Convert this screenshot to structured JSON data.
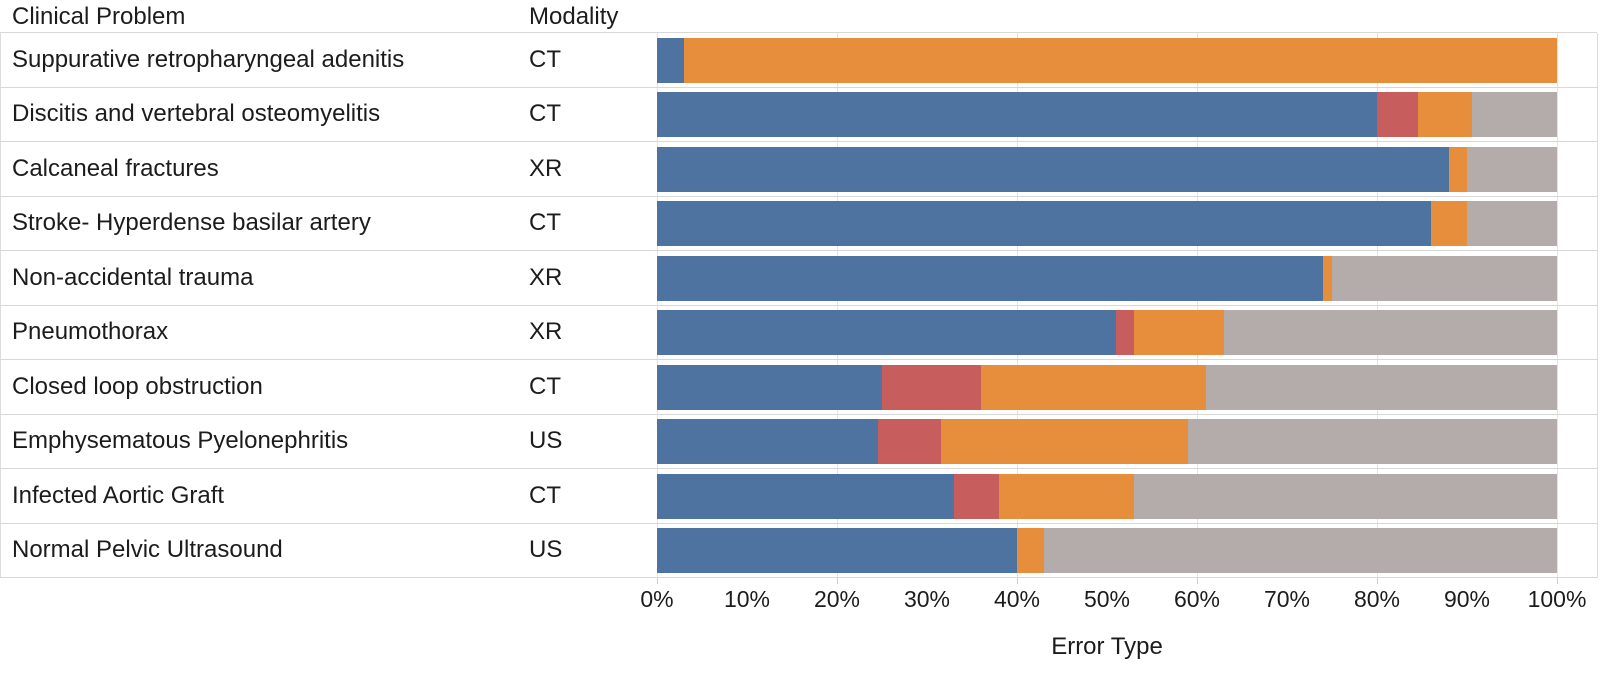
{
  "header": {
    "clinical_problem_label": "Clinical Problem",
    "modality_label": "Modality"
  },
  "x_axis": {
    "title": "Error Type",
    "tick_labels": [
      "0%",
      "10%",
      "20%",
      "30%",
      "40%",
      "50%",
      "60%",
      "70%",
      "80%",
      "90%",
      "100%"
    ]
  },
  "colors": {
    "segment_blue": "#4e73a0",
    "segment_red": "#c75d5d",
    "segment_orange": "#e78e3d",
    "segment_gray": "#b3acaa",
    "row_separator": "#d7d7d7",
    "gridline": "#e4e4e4",
    "text": "#1c1c1c"
  },
  "chart_data": {
    "type": "bar",
    "orientation": "horizontal",
    "stacked": true,
    "stack_unit": "percent",
    "xlabel": "Error Type",
    "xlim": [
      0,
      100
    ],
    "x_tick_step": 10,
    "gridline_step": 20,
    "grid": true,
    "legend_visible": false,
    "column_headers": [
      "Clinical Problem",
      "Modality"
    ],
    "series": [
      {
        "name": "bar-segment-blue",
        "color": "#4e73a0"
      },
      {
        "name": "bar-segment-red",
        "color": "#c75d5d"
      },
      {
        "name": "bar-segment-orange",
        "color": "#e78e3d"
      },
      {
        "name": "bar-segment-gray",
        "color": "#b3acaa"
      }
    ],
    "rows": [
      {
        "clinical_problem": "Suppurative retropharyngeal adenitis",
        "modality": "CT",
        "values": [
          3,
          0,
          97,
          0
        ]
      },
      {
        "clinical_problem": "Discitis and vertebral osteomyelitis",
        "modality": "CT",
        "values": [
          80,
          4.5,
          6,
          9.5
        ]
      },
      {
        "clinical_problem": "Calcaneal fractures",
        "modality": "XR",
        "values": [
          88,
          0,
          2,
          10
        ]
      },
      {
        "clinical_problem": "Stroke- Hyperdense basilar artery",
        "modality": "CT",
        "values": [
          86,
          0,
          4,
          10
        ]
      },
      {
        "clinical_problem": "Non-accidental trauma",
        "modality": "XR",
        "values": [
          74,
          0,
          1,
          25
        ]
      },
      {
        "clinical_problem": "Pneumothorax",
        "modality": "XR",
        "values": [
          51,
          2,
          10,
          37
        ]
      },
      {
        "clinical_problem": "Closed loop obstruction",
        "modality": "CT",
        "values": [
          25,
          11,
          25,
          39
        ]
      },
      {
        "clinical_problem": "Emphysematous Pyelonephritis",
        "modality": "US",
        "values": [
          24.5,
          7,
          27.5,
          41
        ]
      },
      {
        "clinical_problem": "Infected Aortic Graft",
        "modality": "CT",
        "values": [
          33,
          5,
          15,
          47
        ]
      },
      {
        "clinical_problem": "Normal Pelvic Ultrasound",
        "modality": "US",
        "values": [
          40,
          0,
          3,
          57
        ]
      }
    ]
  }
}
